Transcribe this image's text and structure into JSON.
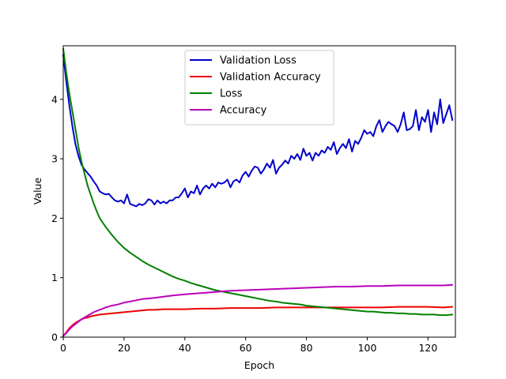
{
  "chart_data": {
    "type": "line",
    "title": "",
    "xlabel": "Epoch",
    "ylabel": "Value",
    "xlim": [
      0,
      129
    ],
    "ylim": [
      0,
      4.9
    ],
    "xticks": [
      0,
      20,
      40,
      60,
      80,
      100,
      120
    ],
    "yticks": [
      0,
      1,
      2,
      3,
      4
    ],
    "grid": false,
    "legend_position": "top-center",
    "series": [
      {
        "name": "Validation Loss",
        "color": "#0000cc",
        "points": [
          [
            0,
            4.75
          ],
          [
            1,
            4.3
          ],
          [
            2,
            3.9
          ],
          [
            3,
            3.55
          ],
          [
            4,
            3.25
          ],
          [
            5,
            3.05
          ],
          [
            6,
            2.9
          ],
          [
            7,
            2.82
          ],
          [
            8,
            2.76
          ],
          [
            9,
            2.7
          ],
          [
            10,
            2.62
          ],
          [
            11,
            2.55
          ],
          [
            12,
            2.45
          ],
          [
            13,
            2.42
          ],
          [
            14,
            2.4
          ],
          [
            15,
            2.41
          ],
          [
            16,
            2.35
          ],
          [
            17,
            2.3
          ],
          [
            18,
            2.28
          ],
          [
            19,
            2.3
          ],
          [
            20,
            2.25
          ],
          [
            21,
            2.4
          ],
          [
            22,
            2.24
          ],
          [
            23,
            2.22
          ],
          [
            24,
            2.2
          ],
          [
            25,
            2.24
          ],
          [
            26,
            2.22
          ],
          [
            27,
            2.25
          ],
          [
            28,
            2.32
          ],
          [
            29,
            2.3
          ],
          [
            30,
            2.23
          ],
          [
            31,
            2.3
          ],
          [
            32,
            2.25
          ],
          [
            33,
            2.28
          ],
          [
            34,
            2.25
          ],
          [
            35,
            2.3
          ],
          [
            36,
            2.3
          ],
          [
            37,
            2.35
          ],
          [
            38,
            2.35
          ],
          [
            39,
            2.42
          ],
          [
            40,
            2.5
          ],
          [
            41,
            2.35
          ],
          [
            42,
            2.45
          ],
          [
            43,
            2.42
          ],
          [
            44,
            2.55
          ],
          [
            45,
            2.4
          ],
          [
            46,
            2.5
          ],
          [
            47,
            2.55
          ],
          [
            48,
            2.5
          ],
          [
            49,
            2.58
          ],
          [
            50,
            2.52
          ],
          [
            51,
            2.6
          ],
          [
            52,
            2.58
          ],
          [
            53,
            2.6
          ],
          [
            54,
            2.65
          ],
          [
            55,
            2.52
          ],
          [
            56,
            2.62
          ],
          [
            57,
            2.65
          ],
          [
            58,
            2.6
          ],
          [
            59,
            2.72
          ],
          [
            60,
            2.78
          ],
          [
            61,
            2.7
          ],
          [
            62,
            2.8
          ],
          [
            63,
            2.87
          ],
          [
            64,
            2.85
          ],
          [
            65,
            2.75
          ],
          [
            66,
            2.82
          ],
          [
            67,
            2.92
          ],
          [
            68,
            2.85
          ],
          [
            69,
            2.98
          ],
          [
            70,
            2.75
          ],
          [
            71,
            2.85
          ],
          [
            72,
            2.9
          ],
          [
            73,
            2.97
          ],
          [
            74,
            2.92
          ],
          [
            75,
            3.05
          ],
          [
            76,
            3.0
          ],
          [
            77,
            3.08
          ],
          [
            78,
            2.98
          ],
          [
            79,
            3.17
          ],
          [
            80,
            3.05
          ],
          [
            81,
            3.1
          ],
          [
            82,
            2.97
          ],
          [
            83,
            3.1
          ],
          [
            84,
            3.05
          ],
          [
            85,
            3.14
          ],
          [
            86,
            3.1
          ],
          [
            87,
            3.2
          ],
          [
            88,
            3.15
          ],
          [
            89,
            3.28
          ],
          [
            90,
            3.08
          ],
          [
            91,
            3.18
          ],
          [
            92,
            3.25
          ],
          [
            93,
            3.18
          ],
          [
            94,
            3.33
          ],
          [
            95,
            3.12
          ],
          [
            96,
            3.3
          ],
          [
            97,
            3.25
          ],
          [
            98,
            3.35
          ],
          [
            99,
            3.48
          ],
          [
            100,
            3.42
          ],
          [
            101,
            3.45
          ],
          [
            102,
            3.38
          ],
          [
            103,
            3.55
          ],
          [
            104,
            3.65
          ],
          [
            105,
            3.45
          ],
          [
            106,
            3.55
          ],
          [
            107,
            3.62
          ],
          [
            108,
            3.58
          ],
          [
            109,
            3.55
          ],
          [
            110,
            3.45
          ],
          [
            111,
            3.58
          ],
          [
            112,
            3.78
          ],
          [
            113,
            3.48
          ],
          [
            114,
            3.5
          ],
          [
            115,
            3.55
          ],
          [
            116,
            3.82
          ],
          [
            117,
            3.48
          ],
          [
            118,
            3.7
          ],
          [
            119,
            3.62
          ],
          [
            120,
            3.82
          ],
          [
            121,
            3.45
          ],
          [
            122,
            3.78
          ],
          [
            123,
            3.58
          ],
          [
            124,
            4.0
          ],
          [
            125,
            3.6
          ],
          [
            126,
            3.75
          ],
          [
            127,
            3.9
          ],
          [
            128,
            3.65
          ]
        ]
      },
      {
        "name": "Validation Accuracy",
        "color": "#ee0000",
        "points": [
          [
            0,
            0.02
          ],
          [
            1,
            0.08
          ],
          [
            2,
            0.15
          ],
          [
            3,
            0.2
          ],
          [
            4,
            0.24
          ],
          [
            5,
            0.27
          ],
          [
            6,
            0.3
          ],
          [
            7,
            0.32
          ],
          [
            8,
            0.33
          ],
          [
            9,
            0.35
          ],
          [
            10,
            0.36
          ],
          [
            12,
            0.38
          ],
          [
            14,
            0.39
          ],
          [
            16,
            0.4
          ],
          [
            18,
            0.41
          ],
          [
            20,
            0.42
          ],
          [
            22,
            0.43
          ],
          [
            24,
            0.44
          ],
          [
            26,
            0.45
          ],
          [
            28,
            0.46
          ],
          [
            30,
            0.46
          ],
          [
            33,
            0.47
          ],
          [
            36,
            0.47
          ],
          [
            40,
            0.47
          ],
          [
            45,
            0.48
          ],
          [
            50,
            0.48
          ],
          [
            55,
            0.49
          ],
          [
            60,
            0.49
          ],
          [
            65,
            0.49
          ],
          [
            70,
            0.5
          ],
          [
            75,
            0.5
          ],
          [
            80,
            0.5
          ],
          [
            85,
            0.5
          ],
          [
            90,
            0.5
          ],
          [
            95,
            0.5
          ],
          [
            100,
            0.5
          ],
          [
            105,
            0.5
          ],
          [
            110,
            0.51
          ],
          [
            115,
            0.51
          ],
          [
            120,
            0.51
          ],
          [
            125,
            0.5
          ],
          [
            128,
            0.51
          ]
        ]
      },
      {
        "name": "Loss",
        "color": "#008000",
        "points": [
          [
            0,
            4.85
          ],
          [
            1,
            4.45
          ],
          [
            2,
            4.1
          ],
          [
            3,
            3.8
          ],
          [
            4,
            3.5
          ],
          [
            5,
            3.2
          ],
          [
            6,
            2.95
          ],
          [
            7,
            2.75
          ],
          [
            8,
            2.55
          ],
          [
            9,
            2.4
          ],
          [
            10,
            2.25
          ],
          [
            11,
            2.12
          ],
          [
            12,
            2.0
          ],
          [
            14,
            1.85
          ],
          [
            16,
            1.72
          ],
          [
            18,
            1.6
          ],
          [
            20,
            1.5
          ],
          [
            22,
            1.42
          ],
          [
            24,
            1.35
          ],
          [
            26,
            1.28
          ],
          [
            28,
            1.22
          ],
          [
            30,
            1.17
          ],
          [
            32,
            1.12
          ],
          [
            34,
            1.07
          ],
          [
            36,
            1.02
          ],
          [
            38,
            0.98
          ],
          [
            40,
            0.95
          ],
          [
            42,
            0.91
          ],
          [
            44,
            0.88
          ],
          [
            46,
            0.85
          ],
          [
            48,
            0.82
          ],
          [
            50,
            0.79
          ],
          [
            52,
            0.77
          ],
          [
            54,
            0.75
          ],
          [
            56,
            0.73
          ],
          [
            58,
            0.71
          ],
          [
            60,
            0.69
          ],
          [
            62,
            0.67
          ],
          [
            64,
            0.65
          ],
          [
            66,
            0.63
          ],
          [
            68,
            0.61
          ],
          [
            70,
            0.6
          ],
          [
            72,
            0.58
          ],
          [
            74,
            0.57
          ],
          [
            76,
            0.56
          ],
          [
            78,
            0.55
          ],
          [
            80,
            0.53
          ],
          [
            82,
            0.52
          ],
          [
            84,
            0.51
          ],
          [
            86,
            0.5
          ],
          [
            88,
            0.49
          ],
          [
            90,
            0.48
          ],
          [
            92,
            0.47
          ],
          [
            94,
            0.46
          ],
          [
            96,
            0.45
          ],
          [
            98,
            0.44
          ],
          [
            100,
            0.43
          ],
          [
            102,
            0.43
          ],
          [
            104,
            0.42
          ],
          [
            106,
            0.41
          ],
          [
            108,
            0.41
          ],
          [
            110,
            0.4
          ],
          [
            112,
            0.4
          ],
          [
            114,
            0.39
          ],
          [
            116,
            0.39
          ],
          [
            118,
            0.38
          ],
          [
            120,
            0.38
          ],
          [
            122,
            0.38
          ],
          [
            124,
            0.37
          ],
          [
            126,
            0.37
          ],
          [
            128,
            0.38
          ]
        ]
      },
      {
        "name": "Accuracy",
        "color": "#bb00bb",
        "points": [
          [
            0,
            0.02
          ],
          [
            1,
            0.07
          ],
          [
            2,
            0.13
          ],
          [
            3,
            0.18
          ],
          [
            4,
            0.22
          ],
          [
            5,
            0.26
          ],
          [
            6,
            0.3
          ],
          [
            7,
            0.33
          ],
          [
            8,
            0.36
          ],
          [
            9,
            0.39
          ],
          [
            10,
            0.42
          ],
          [
            12,
            0.46
          ],
          [
            14,
            0.5
          ],
          [
            16,
            0.53
          ],
          [
            18,
            0.55
          ],
          [
            20,
            0.58
          ],
          [
            22,
            0.6
          ],
          [
            24,
            0.62
          ],
          [
            26,
            0.64
          ],
          [
            28,
            0.65
          ],
          [
            30,
            0.66
          ],
          [
            33,
            0.68
          ],
          [
            36,
            0.7
          ],
          [
            40,
            0.72
          ],
          [
            45,
            0.74
          ],
          [
            50,
            0.76
          ],
          [
            55,
            0.78
          ],
          [
            60,
            0.79
          ],
          [
            65,
            0.8
          ],
          [
            70,
            0.81
          ],
          [
            75,
            0.82
          ],
          [
            80,
            0.83
          ],
          [
            85,
            0.84
          ],
          [
            90,
            0.85
          ],
          [
            95,
            0.85
          ],
          [
            100,
            0.86
          ],
          [
            105,
            0.86
          ],
          [
            110,
            0.87
          ],
          [
            115,
            0.87
          ],
          [
            120,
            0.87
          ],
          [
            125,
            0.87
          ],
          [
            128,
            0.88
          ]
        ]
      }
    ]
  }
}
